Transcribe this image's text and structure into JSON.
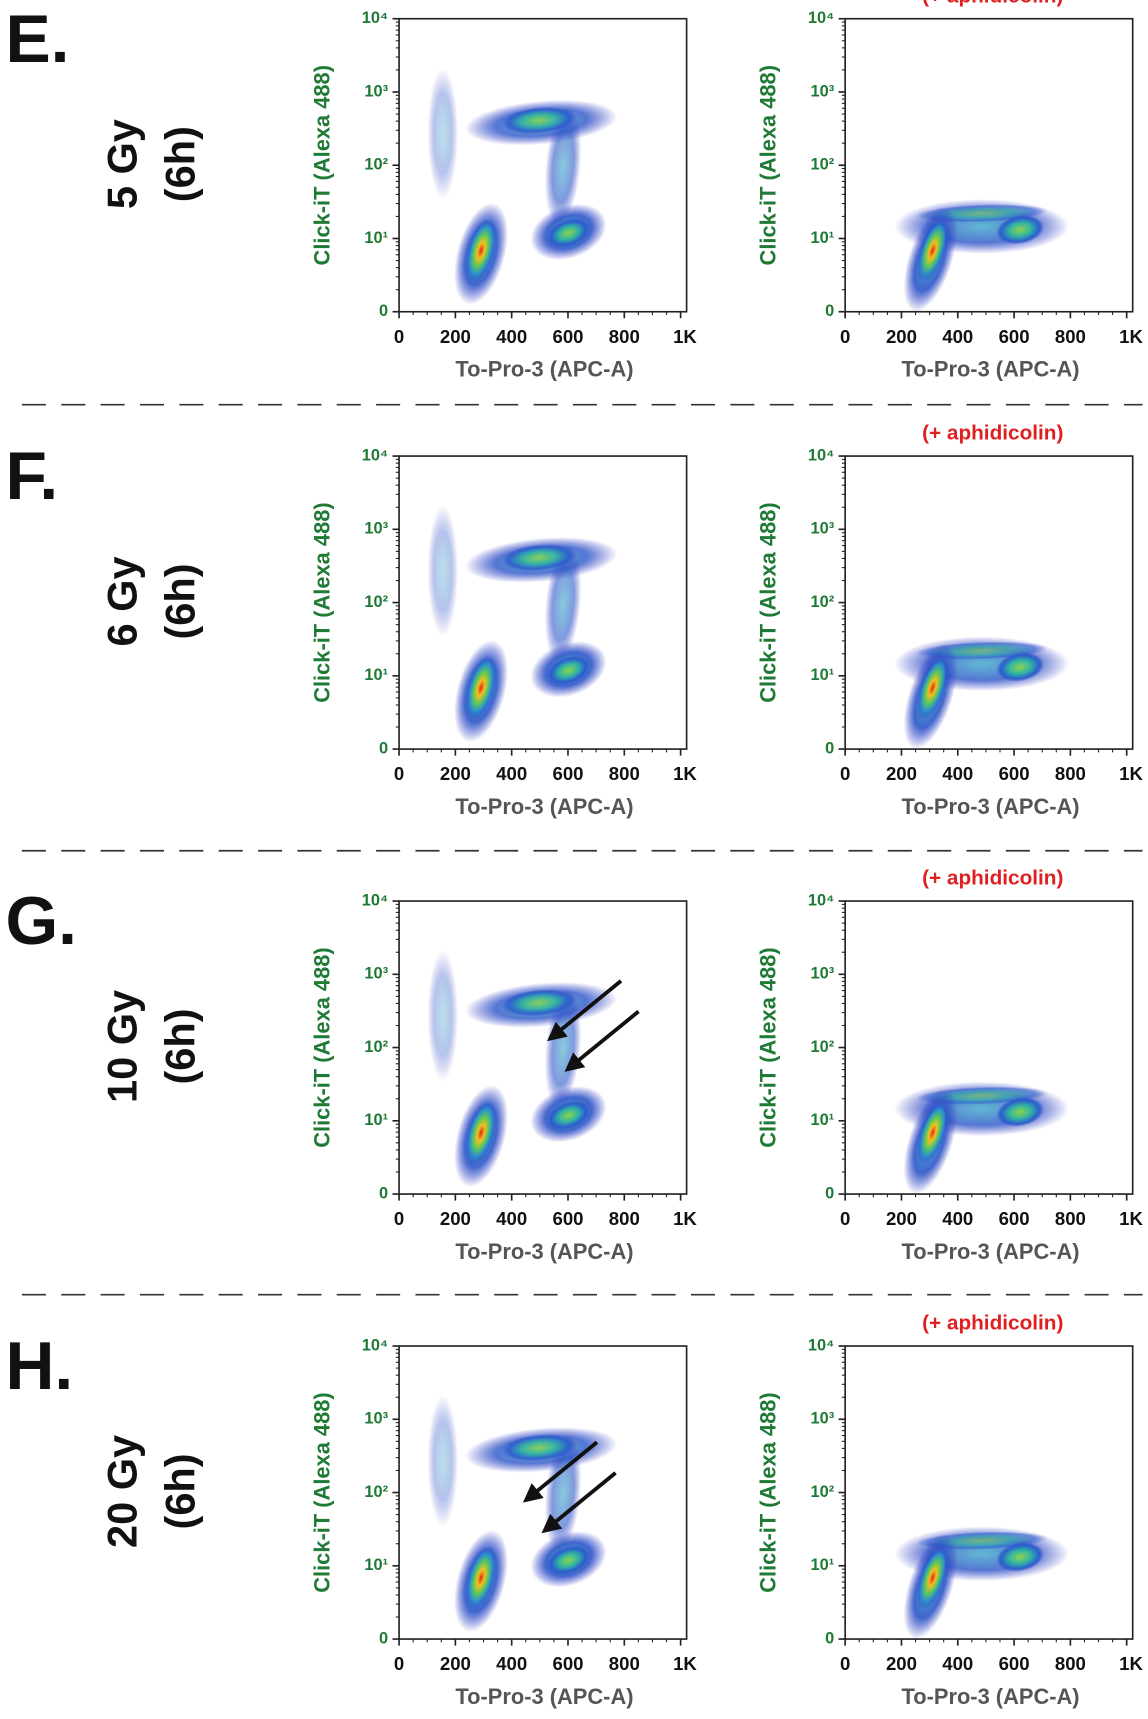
{
  "panels": [
    {
      "letter": "E.",
      "dose": "5 Gy",
      "time": "(6h)",
      "plots": [
        {
          "y_label": "Click-iT (Alexa 488)",
          "x_label": "To-Pro-3 (APC-A)",
          "y_ticks": [
            "10⁴",
            "10³",
            "10²",
            "10¹",
            "0"
          ],
          "x_ticks": [
            "0",
            "200",
            "400",
            "600",
            "800",
            "1K"
          ]
        },
        {
          "title": "(+ aphidicolin)",
          "y_label": "Click-iT (Alexa 488)",
          "x_label": "To-Pro-3 (APC-A)",
          "y_ticks": [
            "10⁴",
            "10³",
            "10²",
            "10¹",
            "0"
          ],
          "x_ticks": [
            "0",
            "200",
            "400",
            "600",
            "800",
            "1K"
          ]
        }
      ]
    },
    {
      "letter": "F.",
      "dose": "6 Gy",
      "time": "(6h)",
      "plots": [
        {
          "y_label": "Click-iT (Alexa 488)",
          "x_label": "To-Pro-3 (APC-A)",
          "y_ticks": [
            "10⁴",
            "10³",
            "10²",
            "10¹",
            "0"
          ],
          "x_ticks": [
            "0",
            "200",
            "400",
            "600",
            "800",
            "1K"
          ]
        },
        {
          "title": "(+ aphidicolin)",
          "y_label": "Click-iT (Alexa 488)",
          "x_label": "To-Pro-3 (APC-A)",
          "y_ticks": [
            "10⁴",
            "10³",
            "10²",
            "10¹",
            "0"
          ],
          "x_ticks": [
            "0",
            "200",
            "400",
            "600",
            "800",
            "1K"
          ]
        }
      ]
    },
    {
      "letter": "G.",
      "dose": "10 Gy",
      "time": "(6h)",
      "plots": [
        {
          "y_label": "Click-iT (Alexa 488)",
          "x_label": "To-Pro-3 (APC-A)",
          "y_ticks": [
            "10⁴",
            "10³",
            "10²",
            "10¹",
            "0"
          ],
          "x_ticks": [
            "0",
            "200",
            "400",
            "600",
            "800",
            "1K"
          ]
        },
        {
          "title": "(+ aphidicolin)",
          "y_label": "Click-iT (Alexa 488)",
          "x_label": "To-Pro-3 (APC-A)",
          "y_ticks": [
            "10⁴",
            "10³",
            "10²",
            "10¹",
            "0"
          ],
          "x_ticks": [
            "0",
            "200",
            "400",
            "600",
            "800",
            "1K"
          ]
        }
      ]
    },
    {
      "letter": "H.",
      "dose": "20 Gy",
      "time": "(6h)",
      "plots": [
        {
          "y_label": "Click-iT (Alexa 488)",
          "x_label": "To-Pro-3 (APC-A)",
          "y_ticks": [
            "10⁴",
            "10³",
            "10²",
            "10¹",
            "0"
          ],
          "x_ticks": [
            "0",
            "200",
            "400",
            "600",
            "800",
            "1K"
          ]
        },
        {
          "title": "(+ aphidicolin)",
          "y_label": "Click-iT (Alexa 488)",
          "x_label": "To-Pro-3 (APC-A)",
          "y_ticks": [
            "10⁴",
            "10³",
            "10²",
            "10¹",
            "0"
          ],
          "x_ticks": [
            "0",
            "200",
            "400",
            "600",
            "800",
            "1K"
          ]
        }
      ]
    }
  ]
}
